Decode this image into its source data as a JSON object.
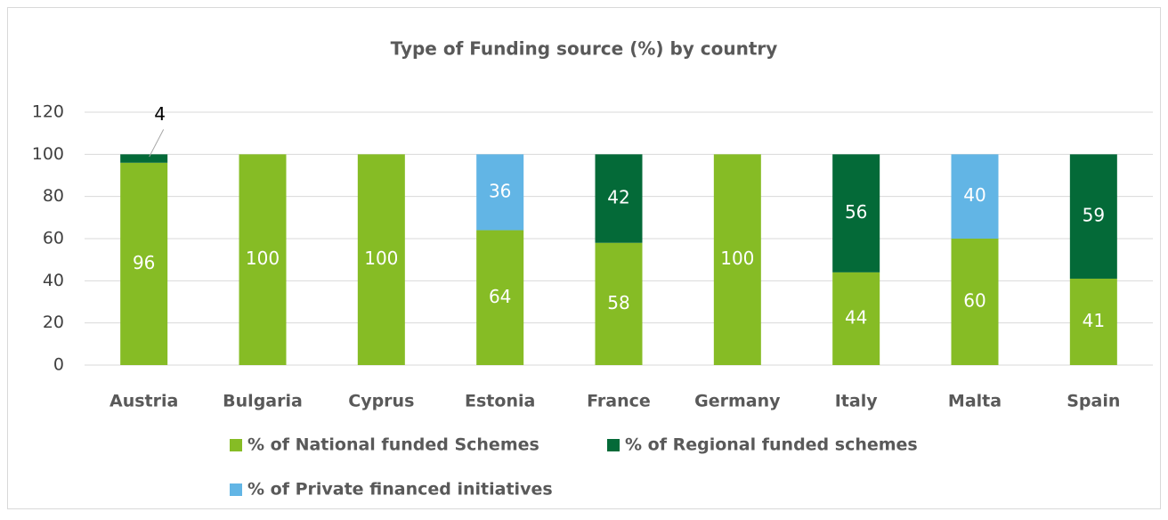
{
  "chart_data": {
    "type": "stacked_bar",
    "title": "Type of Funding source (%) by country",
    "categories": [
      "Austria",
      "Bulgaria",
      "Cyprus",
      "Estonia",
      "France",
      "Germany",
      "Italy",
      "Malta",
      "Spain"
    ],
    "series": [
      {
        "name": "% of National funded Schemes",
        "color": "#86bc25",
        "values": [
          96,
          100,
          100,
          64,
          58,
          100,
          44,
          60,
          41
        ]
      },
      {
        "name": "% of Regional funded schemes",
        "color": "#046a38",
        "values": [
          4,
          null,
          null,
          null,
          42,
          null,
          56,
          null,
          59
        ]
      },
      {
        "name": "% of Private financed initiatives",
        "color": "#62b5e5",
        "values": [
          null,
          null,
          null,
          36,
          null,
          null,
          null,
          40,
          null
        ]
      }
    ],
    "ylim": [
      0,
      120
    ],
    "yticks": [
      0,
      20,
      40,
      60,
      80,
      100,
      120
    ],
    "grid": true,
    "legend": "bottom"
  }
}
